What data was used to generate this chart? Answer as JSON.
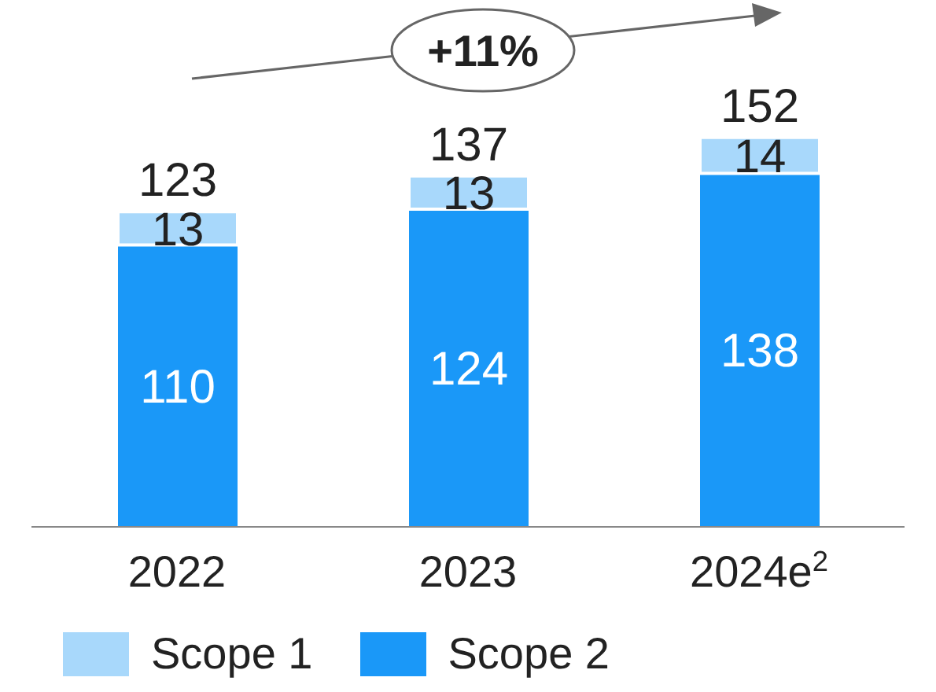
{
  "chart_data": {
    "type": "bar",
    "stacked": true,
    "data_labels": true,
    "legend": "bottom left",
    "categories": [
      "2022",
      "2023",
      "2024e$^{2}$"
    ],
    "series": [
      {
        "name": "Scope 2",
        "color": "#1a98f8",
        "values": [
          110,
          124,
          138
        ]
      },
      {
        "name": "Scope 1",
        "color": "#a8d8fb",
        "values": [
          13,
          13,
          14
        ]
      }
    ],
    "totals": [
      "123",
      "137",
      "152"
    ],
    "annotations": [
      "+11%"
    ]
  }
}
